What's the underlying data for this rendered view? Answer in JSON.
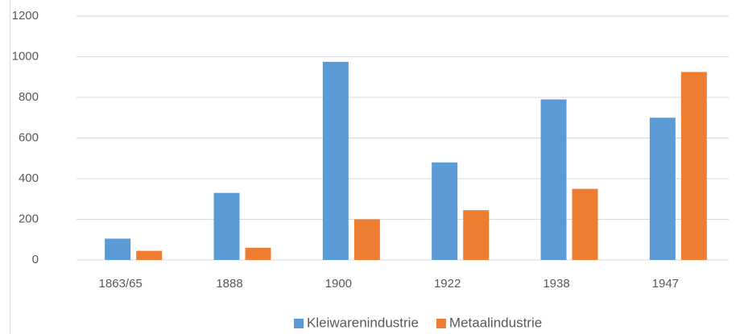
{
  "chart_data": {
    "type": "bar",
    "categories": [
      "1863/65",
      "1888",
      "1900",
      "1922",
      "1938",
      "1947"
    ],
    "series": [
      {
        "name": "Kleiwarenindustrie",
        "color": "#5b9bd5",
        "values": [
          105,
          330,
          975,
          480,
          790,
          700
        ]
      },
      {
        "name": "Metaalindustrie",
        "color": "#ed7d31",
        "values": [
          45,
          60,
          200,
          245,
          350,
          925
        ]
      }
    ],
    "ylim": [
      0,
      1200
    ],
    "yticks": [
      0,
      200,
      400,
      600,
      800,
      1000,
      1200
    ],
    "grid": true,
    "legend": "bottom"
  }
}
